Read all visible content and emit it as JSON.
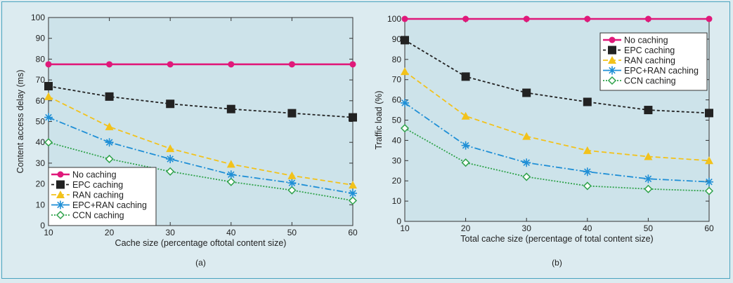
{
  "chart_data": [
    {
      "type": "line",
      "caption": "(a)",
      "xlabel": "Cache size (percentage oftotal content size)",
      "ylabel": "Content access delay (ms)",
      "x": [
        10,
        20,
        30,
        40,
        50,
        60
      ],
      "xlim": [
        10,
        60
      ],
      "ylim": [
        0,
        100
      ],
      "xticks": [
        10,
        20,
        30,
        40,
        50,
        60
      ],
      "yticks": [
        0,
        10,
        20,
        30,
        40,
        50,
        60,
        70,
        80,
        90,
        100
      ],
      "grid": false,
      "legend_position": "bottom-left",
      "series": [
        {
          "name": "No caching",
          "values": [
            77.5,
            77.5,
            77.5,
            77.5,
            77.5,
            77.5
          ],
          "color": "#e0197a",
          "dash": "",
          "marker": "circle"
        },
        {
          "name": "EPC caching",
          "values": [
            67,
            62,
            58.5,
            56,
            54,
            52
          ],
          "color": "#222222",
          "dash": "4,3",
          "marker": "square"
        },
        {
          "name": "RAN caching",
          "values": [
            62,
            47.5,
            37,
            29.5,
            24,
            19.5
          ],
          "color": "#f2c21b",
          "dash": "7,4",
          "marker": "triangle"
        },
        {
          "name": "EPC+RAN caching",
          "values": [
            52,
            40,
            32,
            24.5,
            20.5,
            15.5
          ],
          "color": "#1f8fd6",
          "dash": "9,3,2,3",
          "marker": "asterisk"
        },
        {
          "name": "CCN caching",
          "values": [
            40,
            32,
            26,
            21,
            17,
            12
          ],
          "color": "#2ea24a",
          "dash": "2,2",
          "marker": "diamond"
        }
      ]
    },
    {
      "type": "line",
      "caption": "(b)",
      "xlabel": "Total cache size (percentage of total content size)",
      "ylabel": "Traffic load (%)",
      "x": [
        10,
        20,
        30,
        40,
        50,
        60
      ],
      "xlim": [
        10,
        60
      ],
      "ylim": [
        0,
        100
      ],
      "xticks": [
        10,
        20,
        30,
        40,
        50,
        60
      ],
      "yticks": [
        0,
        10,
        20,
        30,
        40,
        50,
        60,
        70,
        80,
        90,
        100
      ],
      "grid": false,
      "legend_position": "top-right",
      "series": [
        {
          "name": "No caching",
          "values": [
            100,
            100,
            100,
            100,
            100,
            100
          ],
          "color": "#e0197a",
          "dash": "",
          "marker": "circle"
        },
        {
          "name": "EPC caching",
          "values": [
            89.5,
            71.5,
            63.5,
            59,
            55,
            53.5
          ],
          "color": "#222222",
          "dash": "4,3",
          "marker": "square"
        },
        {
          "name": "RAN caching",
          "values": [
            74,
            52,
            42,
            35,
            32,
            30
          ],
          "color": "#f2c21b",
          "dash": "7,4",
          "marker": "triangle"
        },
        {
          "name": "EPC+RAN caching",
          "values": [
            58.5,
            37.5,
            29,
            24.5,
            21,
            19.5
          ],
          "color": "#1f8fd6",
          "dash": "9,3,2,3",
          "marker": "asterisk"
        },
        {
          "name": "CCN caching",
          "values": [
            46,
            29,
            22,
            17.5,
            16,
            15
          ],
          "color": "#2ea24a",
          "dash": "2,2",
          "marker": "diamond"
        }
      ]
    }
  ],
  "colors": {
    "plot_background": "#cde3ea",
    "page_background": "#dcebf0",
    "border": "#4aa3bf"
  }
}
